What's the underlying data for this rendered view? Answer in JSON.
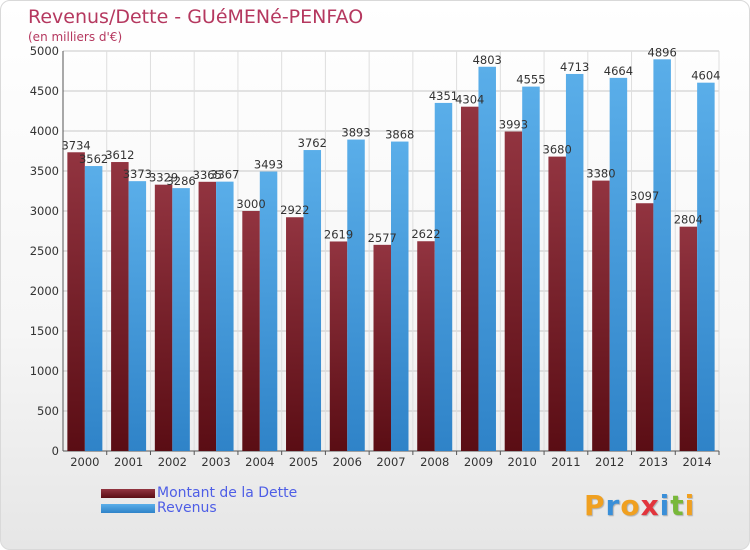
{
  "header": {
    "title": "Revenus/Dette - GUéMENé-PENFAO",
    "subtitle": "(en milliers d'€)"
  },
  "colors": {
    "dette": "#7a1f2b",
    "revenus": "#4ea3e6"
  },
  "logo": {
    "letters": [
      {
        "char": "P",
        "color": "#f0a020"
      },
      {
        "char": "r",
        "color": "#3a8fd8"
      },
      {
        "char": "o",
        "color": "#f0a020"
      },
      {
        "char": "x",
        "color": "#e2343c"
      },
      {
        "char": "i",
        "color": "#3a8fd8"
      },
      {
        "char": "t",
        "color": "#79b83a"
      },
      {
        "char": "i",
        "color": "#f0a020"
      }
    ]
  },
  "chart_data": {
    "type": "bar",
    "title": "Revenus/Dette - GUéMENé-PENFAO",
    "subtitle": "(en milliers d'€)",
    "categories": [
      "2000",
      "2001",
      "2002",
      "2003",
      "2004",
      "2005",
      "2006",
      "2007",
      "2008",
      "2009",
      "2010",
      "2011",
      "2012",
      "2013",
      "2014"
    ],
    "series": [
      {
        "name": "Montant de la Dette",
        "values": [
          3734,
          3612,
          3329,
          3365,
          3000,
          2922,
          2619,
          2577,
          2622,
          4304,
          3993,
          3680,
          3380,
          3097,
          2804
        ],
        "labels": [
          "3734",
          "3612",
          "3329",
          "3365",
          "3000",
          "2922",
          "2619",
          "2577",
          "2622",
          "4304",
          "3993",
          "3680",
          "3380",
          "3097",
          "2804"
        ]
      },
      {
        "name": "Revenus",
        "values": [
          3562,
          3373,
          3286,
          3367,
          3493,
          3762,
          3893,
          3868,
          4351,
          4803,
          4555,
          4713,
          4664,
          4896,
          4604
        ],
        "labels": [
          "3562",
          "3373",
          "3286",
          "3367",
          "3493",
          "3762",
          "3893",
          "3868",
          "4351",
          "4803",
          "4555",
          "4713",
          "4664",
          "4896",
          "4604"
        ]
      }
    ],
    "yticks": [
      "0",
      "500",
      "1000",
      "1500",
      "2000",
      "2500",
      "3000",
      "3500",
      "4000",
      "4500",
      "5000"
    ],
    "ylim": [
      0,
      5000
    ],
    "grid": true,
    "legend_position": "bottom-left"
  }
}
